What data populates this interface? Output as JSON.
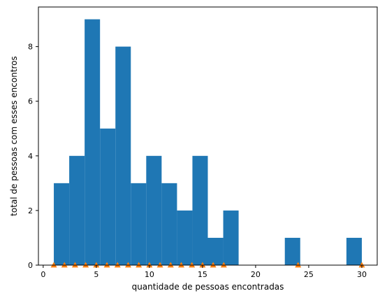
{
  "chart_data": {
    "type": "bar",
    "title": "",
    "xlabel": "quantidade de pessoas encontradas",
    "ylabel": "total de pessoas com esses encontros",
    "xlim": [
      -0.45,
      31.45
    ],
    "ylim": [
      0,
      9.45
    ],
    "x_ticks": [
      0,
      5,
      10,
      15,
      20,
      25,
      30
    ],
    "y_ticks": [
      0,
      2,
      4,
      6,
      8
    ],
    "grid": false,
    "bar_color": "#1f77b4",
    "marker_color": "#ff7f0e",
    "bin_edges": [
      1.0,
      2.45,
      3.9,
      5.35,
      6.8,
      8.25,
      9.7,
      11.15,
      12.6,
      14.05,
      15.5,
      16.95,
      18.4,
      19.85,
      21.3,
      22.75,
      24.2,
      25.65,
      27.1,
      28.55,
      30.0
    ],
    "counts": [
      3,
      4,
      9,
      5,
      8,
      3,
      4,
      3,
      2,
      4,
      1,
      2,
      0,
      0,
      0,
      1,
      0,
      0,
      0,
      1
    ],
    "markers": {
      "shape": "triangle-up",
      "x": [
        1,
        2,
        3,
        4,
        5,
        6,
        7,
        8,
        9,
        10,
        11,
        12,
        13,
        14,
        15,
        16,
        17,
        24,
        30
      ],
      "y": [
        0,
        0,
        0,
        0,
        0,
        0,
        0,
        0,
        0,
        0,
        0,
        0,
        0,
        0,
        0,
        0,
        0,
        0,
        0
      ]
    }
  }
}
